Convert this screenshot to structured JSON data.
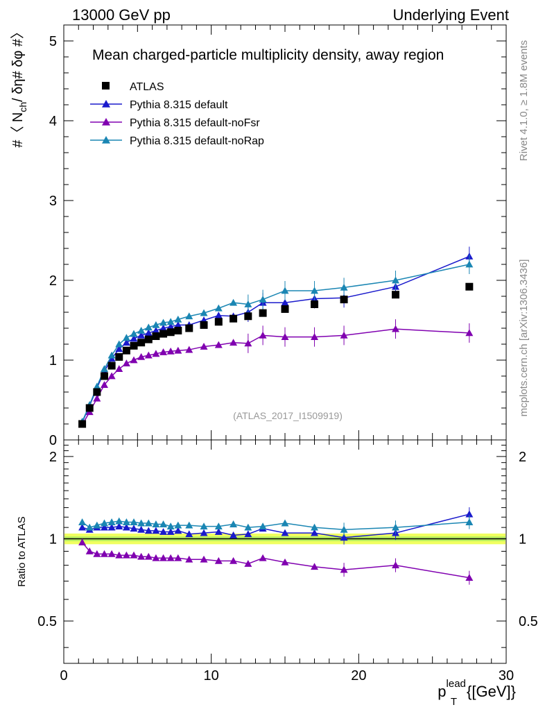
{
  "header": {
    "left": "13000 GeV pp",
    "right": "Underlying Event"
  },
  "side_labels": {
    "rivet": "Rivet 4.1.0, ≥ 1.8M events",
    "mcplots": "mcplots.cern.ch [arXiv:1306.3436]"
  },
  "colors": {
    "atlas": "#000000",
    "default": "#1a1acc",
    "nofsr": "#8000b0",
    "norap": "#1a86b3",
    "band_outer": "#f0ff60",
    "band_inner": "#b8f060"
  },
  "chart_data": [
    {
      "type": "scatter",
      "title": "Mean charged-particle multiplicity density, away region",
      "watermark": "(ATLAS_2017_I1509919)",
      "xlabel_main": "p",
      "xlabel_sup": "lead",
      "xlabel_sub": "T",
      "xlabel_unit": "{[GeV]}",
      "ylabel": {
        "pre": "#〈 N",
        "sub": "ch",
        "post": "/ δη# δφ #〉"
      },
      "xlim": [
        0,
        30
      ],
      "ylim": [
        0,
        5.2
      ],
      "xticks": [
        0,
        10,
        20,
        30
      ],
      "yticks": [
        0,
        1,
        2,
        3,
        4,
        5
      ],
      "legend": [
        "ATLAS",
        "Pythia 8.315 default",
        "Pythia 8.315 default-noFsr",
        "Pythia 8.315 default-noRap"
      ],
      "x": [
        1.25,
        1.75,
        2.25,
        2.75,
        3.25,
        3.75,
        4.25,
        4.75,
        5.25,
        5.75,
        6.25,
        6.75,
        7.25,
        7.75,
        8.5,
        9.5,
        10.5,
        11.5,
        12.5,
        13.5,
        15.0,
        17.0,
        19.0,
        22.5,
        27.5
      ],
      "series": [
        {
          "name": "ATLAS",
          "marker": "square",
          "values": [
            0.2,
            0.4,
            0.6,
            0.8,
            0.93,
            1.04,
            1.12,
            1.18,
            1.22,
            1.26,
            1.3,
            1.33,
            1.35,
            1.37,
            1.4,
            1.44,
            1.48,
            1.52,
            1.55,
            1.59,
            1.64,
            1.7,
            1.76,
            1.82,
            1.92
          ]
        },
        {
          "name": "Pythia 8.315 default",
          "marker": "triangle",
          "values": [
            0.22,
            0.43,
            0.65,
            0.86,
            1.02,
            1.14,
            1.22,
            1.27,
            1.31,
            1.34,
            1.37,
            1.4,
            1.42,
            1.44,
            1.44,
            1.5,
            1.56,
            1.55,
            1.6,
            1.72,
            1.72,
            1.77,
            1.78,
            1.92,
            2.3
          ]
        },
        {
          "name": "Pythia 8.315 default-noFsr",
          "marker": "triangle",
          "values": [
            0.19,
            0.35,
            0.52,
            0.69,
            0.8,
            0.89,
            0.96,
            1.0,
            1.04,
            1.06,
            1.08,
            1.1,
            1.11,
            1.12,
            1.13,
            1.17,
            1.19,
            1.22,
            1.21,
            1.31,
            1.29,
            1.29,
            1.31,
            1.39,
            1.34
          ]
        },
        {
          "name": "Pythia 8.315 default-noRap",
          "marker": "triangle",
          "values": [
            0.23,
            0.44,
            0.67,
            0.89,
            1.06,
            1.2,
            1.28,
            1.33,
            1.37,
            1.41,
            1.44,
            1.47,
            1.48,
            1.51,
            1.55,
            1.59,
            1.65,
            1.72,
            1.7,
            1.76,
            1.87,
            1.87,
            1.91,
            2.0,
            2.2
          ]
        }
      ]
    },
    {
      "type": "scatter",
      "ylabel": "Ratio to ATLAS",
      "xlim": [
        0,
        30
      ],
      "ylim": [
        0.35,
        2.3
      ],
      "yticks": [
        0.5,
        1,
        2
      ],
      "x": [
        1.25,
        1.75,
        2.25,
        2.75,
        3.25,
        3.75,
        4.25,
        4.75,
        5.25,
        5.75,
        6.25,
        6.75,
        7.25,
        7.75,
        8.5,
        9.5,
        10.5,
        11.5,
        12.5,
        13.5,
        15.0,
        17.0,
        19.0,
        22.5,
        27.5
      ],
      "series": [
        {
          "name": "Pythia 8.315 default",
          "values": [
            1.1,
            1.08,
            1.1,
            1.1,
            1.1,
            1.11,
            1.1,
            1.09,
            1.08,
            1.07,
            1.07,
            1.06,
            1.06,
            1.07,
            1.04,
            1.05,
            1.06,
            1.03,
            1.04,
            1.09,
            1.05,
            1.05,
            1.01,
            1.05,
            1.23
          ]
        },
        {
          "name": "Pythia 8.315 default-noFsr",
          "values": [
            0.97,
            0.9,
            0.88,
            0.88,
            0.88,
            0.87,
            0.87,
            0.87,
            0.86,
            0.86,
            0.85,
            0.85,
            0.85,
            0.85,
            0.84,
            0.84,
            0.83,
            0.83,
            0.81,
            0.85,
            0.82,
            0.79,
            0.77,
            0.8,
            0.72
          ]
        },
        {
          "name": "Pythia 8.315 default-noRap",
          "values": [
            1.15,
            1.1,
            1.12,
            1.14,
            1.15,
            1.16,
            1.15,
            1.15,
            1.14,
            1.14,
            1.13,
            1.13,
            1.11,
            1.12,
            1.12,
            1.11,
            1.11,
            1.13,
            1.1,
            1.11,
            1.14,
            1.1,
            1.08,
            1.1,
            1.15
          ]
        }
      ]
    }
  ]
}
